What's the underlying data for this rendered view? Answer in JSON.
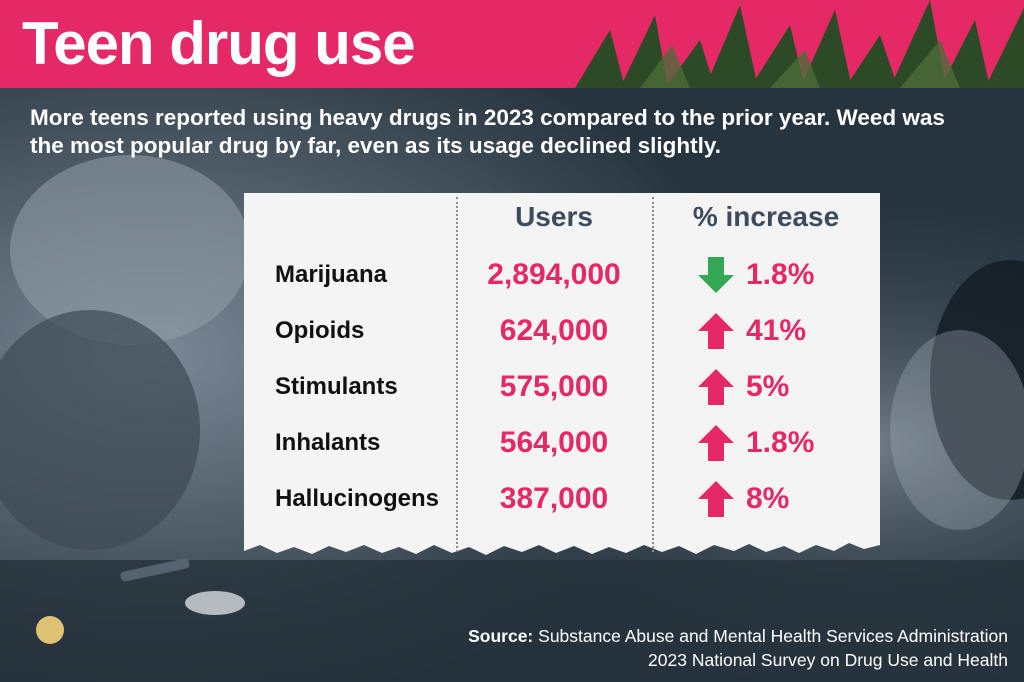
{
  "header": {
    "title": "Teen drug use"
  },
  "subtitle": "More teens reported using heavy drugs in 2023 compared to the prior year. Weed was the most popular drug by far, even as its usage declined slightly.",
  "colors": {
    "accent": "#e52866",
    "up_arrow": "#e52866",
    "down_arrow": "#34a853",
    "header_text": "#3e4b5e",
    "background": "#1f2c36"
  },
  "chart_data": {
    "type": "table",
    "columns": [
      "",
      "Users",
      "% increase"
    ],
    "rows": [
      {
        "drug": "Marijuana",
        "users": "2,894,000",
        "users_value": 2894000,
        "direction": "down",
        "change": "1.8%",
        "change_value": -1.8
      },
      {
        "drug": "Opioids",
        "users": "624,000",
        "users_value": 624000,
        "direction": "up",
        "change": "41%",
        "change_value": 41
      },
      {
        "drug": "Stimulants",
        "users": "575,000",
        "users_value": 575000,
        "direction": "up",
        "change": "5%",
        "change_value": 5
      },
      {
        "drug": "Inhalants",
        "users": "564,000",
        "users_value": 564000,
        "direction": "up",
        "change": "1.8%",
        "change_value": 1.8
      },
      {
        "drug": "Hallucinogens",
        "users": "387,000",
        "users_value": 387000,
        "direction": "up",
        "change": "8%",
        "change_value": 8
      }
    ]
  },
  "source": {
    "label": "Source:",
    "line1": "Substance Abuse and Mental Health Services Administration",
    "line2": "2023 National Survey on Drug Use and Health"
  }
}
